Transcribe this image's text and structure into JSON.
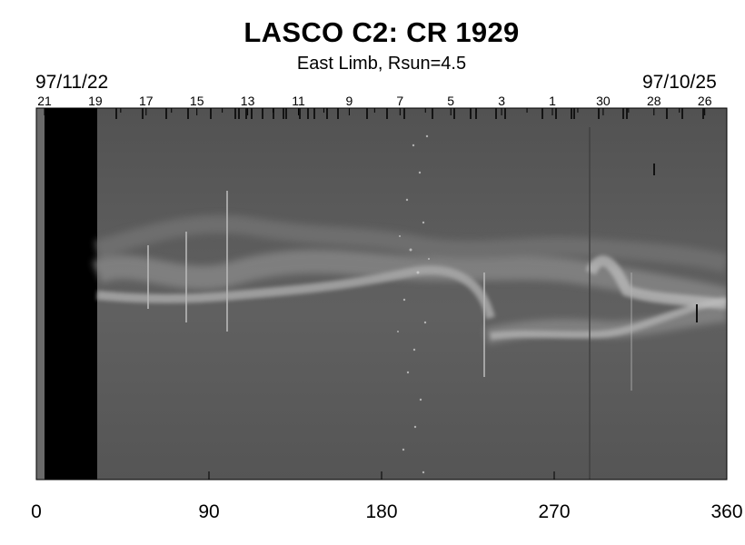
{
  "title": "LASCO C2: CR 1929",
  "subtitle": "East Limb, Rsun=4.5",
  "date_start": "97/11/22",
  "date_end": "97/10/25",
  "chart_data": {
    "type": "heatmap",
    "title": "LASCO C2: CR 1929",
    "subtitle": "East Limb, Rsun=4.5",
    "x_ticks": [
      0,
      90,
      180,
      270,
      360
    ],
    "xlim": [
      0,
      360
    ],
    "top_day_labels": [
      "21",
      "19",
      "17",
      "15",
      "13",
      "11",
      "9",
      "7",
      "5",
      "3",
      "1",
      "30",
      "28",
      "26"
    ],
    "date_range": [
      "97/11/22",
      "97/10/25"
    ],
    "colors": {
      "background": "#5a5a5a",
      "data_gap": "#000000",
      "streamer": "#c8c8c8"
    }
  }
}
